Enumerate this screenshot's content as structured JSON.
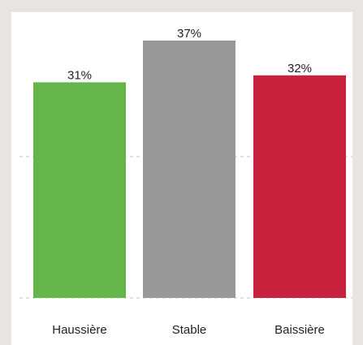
{
  "chart_data": {
    "type": "bar",
    "categories": [
      "Haussière",
      "Stable",
      "Baissière"
    ],
    "values": [
      31,
      37,
      32
    ],
    "value_labels": [
      "31%",
      "37%",
      "32%"
    ],
    "colors": [
      "#64b54a",
      "#989898",
      "#c8223f"
    ],
    "ylim": [
      0,
      37
    ],
    "grid": true,
    "gridline_color": "#c8c8c8"
  }
}
